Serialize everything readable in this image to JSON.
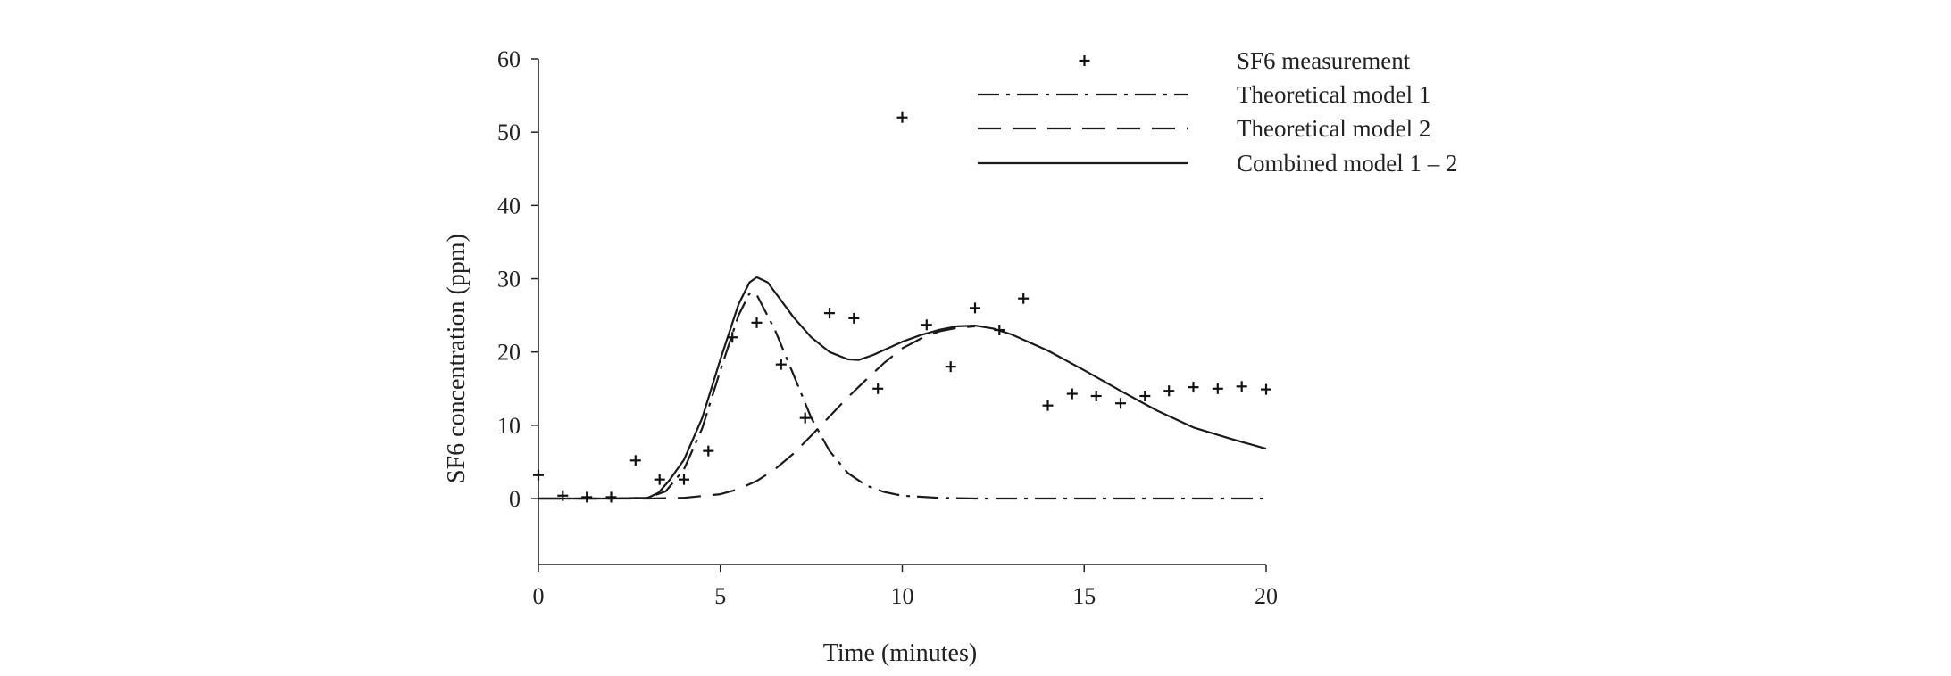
{
  "chart_data": {
    "type": "line",
    "title": "",
    "xlabel": "Time (minutes)",
    "ylabel": "SF6 concentration (ppm)",
    "xlim": [
      0,
      20
    ],
    "ylim": [
      -9,
      60
    ],
    "xticks": [
      0,
      5,
      10,
      15,
      20
    ],
    "yticks": [
      0,
      10,
      20,
      30,
      40,
      50,
      60
    ],
    "xtick_labels": [
      "0",
      "5",
      "10",
      "15",
      "20"
    ],
    "ytick_labels": [
      "0",
      "10",
      "20",
      "30",
      "40",
      "50",
      "60"
    ],
    "grid": false,
    "legend_position": "top-right",
    "legend": [
      {
        "label": "SF6 measurement",
        "style": "marker-plus"
      },
      {
        "label": "Theoretical model 1",
        "style": "dash-dot"
      },
      {
        "label": "Theoretical model 2",
        "style": "dashed"
      },
      {
        "label": "Combined model 1 – 2",
        "style": "solid"
      }
    ],
    "scatter": {
      "name": "SF6 measurement",
      "x": [
        0,
        0.67,
        1.33,
        2,
        2.67,
        3.33,
        4,
        4.67,
        5.33,
        6,
        6.67,
        7.33,
        8,
        8.67,
        9.33,
        10,
        10.67,
        11.33,
        12,
        12.67,
        13.33,
        14,
        14.67,
        15.33,
        16,
        16.67,
        17.33,
        18,
        18.67,
        19.33,
        20
      ],
      "y": [
        3.2,
        0.4,
        0.2,
        0.2,
        5.2,
        2.6,
        2.6,
        6.5,
        22,
        24,
        18.3,
        11,
        25.3,
        24.6,
        15,
        52,
        23.7,
        18,
        26,
        23,
        27.3,
        12.7,
        14.3,
        14,
        13,
        14,
        14.7,
        15.2,
        15,
        15.3,
        14.9
      ]
    },
    "series": [
      {
        "name": "Theoretical model 1",
        "style": "dash-dot",
        "x": [
          0,
          1,
          2,
          3,
          3.5,
          4,
          4.5,
          5,
          5.5,
          5.8,
          6,
          6.5,
          7,
          7.5,
          8,
          8.5,
          9,
          9.5,
          10,
          11,
          12,
          14,
          16,
          18,
          20
        ],
        "y": [
          0,
          0,
          0,
          0.1,
          1,
          4,
          9.6,
          17.5,
          25,
          28,
          27.8,
          23,
          17,
          11,
          6.5,
          3.5,
          1.8,
          0.9,
          0.4,
          0.1,
          0,
          0,
          0,
          0,
          0
        ]
      },
      {
        "name": "Theoretical model 2",
        "style": "dashed",
        "x": [
          0,
          2,
          3,
          4,
          5,
          5.5,
          6,
          6.5,
          7,
          7.5,
          8,
          8.5,
          9,
          9.5,
          10,
          10.5,
          11,
          11.5,
          12
        ],
        "y": [
          0,
          0,
          0,
          0.1,
          0.6,
          1.3,
          2.4,
          4,
          6.1,
          8.6,
          11.2,
          13.8,
          16.2,
          18.5,
          20.5,
          21.8,
          22.8,
          23.3,
          23.5
        ]
      },
      {
        "name": "Combined model 1 – 2",
        "style": "solid",
        "x": [
          0,
          1,
          2,
          3,
          3.3,
          3.6,
          4,
          4.5,
          5,
          5.5,
          5.8,
          6,
          6.3,
          6.6,
          7,
          7.5,
          8,
          8.5,
          8.8,
          9.2,
          9.6,
          10,
          10.5,
          11,
          11.5,
          12,
          12.5,
          13,
          14,
          15,
          16,
          17,
          18,
          19,
          20
        ],
        "y": [
          0,
          0,
          0,
          0.1,
          0.8,
          2.5,
          5.3,
          11,
          19,
          26.5,
          29.5,
          30.2,
          29.5,
          27.5,
          24.8,
          22,
          20,
          19,
          18.9,
          19.6,
          20.5,
          21.4,
          22.3,
          23,
          23.5,
          23.6,
          23.2,
          22.4,
          20.2,
          17.5,
          14.7,
          12,
          9.7,
          8.2,
          6.8
        ]
      }
    ]
  }
}
